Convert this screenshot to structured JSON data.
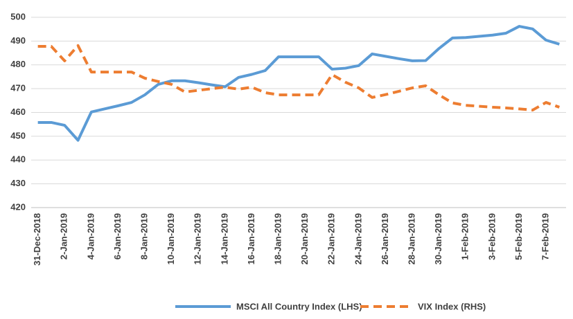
{
  "chart_data": {
    "type": "line",
    "categories": [
      "31-Dec-2018",
      null,
      "2-Jan-2019",
      null,
      "4-Jan-2019",
      null,
      "6-Jan-2019",
      null,
      "8-Jan-2019",
      null,
      "10-Jan-2019",
      null,
      "12-Jan-2019",
      null,
      "14-Jan-2019",
      null,
      "16-Jan-2019",
      null,
      "18-Jan-2019",
      null,
      "20-Jan-2019",
      null,
      "22-Jan-2019",
      null,
      "24-Jan-2019",
      null,
      "26-Jan-2019",
      null,
      "28-Jan-2019",
      null,
      "30-Jan-2019",
      null,
      "1-Feb-2019",
      null,
      "3-Feb-2019",
      null,
      "5-Feb-2019",
      null,
      "7-Feb-2019",
      null
    ],
    "series": [
      {
        "name": "MSCI All Country Index (LHS)",
        "color": "#5b9bd5",
        "dashed": false,
        "values": [
          455.8,
          455.8,
          454.6,
          448.3,
          460.2,
          461.5,
          462.8,
          464.2,
          467.4,
          471.8,
          473.3,
          473.3,
          472.5,
          471.6,
          470.8,
          474.7,
          476.0,
          477.6,
          483.4,
          483.4,
          483.4,
          483.4,
          478.2,
          478.6,
          479.7,
          484.6,
          483.6,
          482.6,
          481.7,
          481.8,
          486.9,
          491.3,
          491.5,
          492.0,
          492.5,
          493.3,
          496.2,
          495.1,
          490.4,
          488.7
        ]
      },
      {
        "name": "VIX Index (RHS)",
        "color": "#ed7d31",
        "dashed": true,
        "values": [
          487.8,
          487.8,
          481.7,
          488.1,
          477.0,
          477.0,
          477.0,
          477.0,
          474.4,
          473.0,
          471.8,
          468.6,
          469.3,
          470.0,
          470.6,
          469.8,
          470.6,
          468.3,
          467.4,
          467.4,
          467.4,
          467.4,
          475.9,
          472.7,
          470.3,
          466.3,
          467.5,
          468.9,
          470.3,
          471.2,
          467.4,
          464.0,
          463.0,
          462.6,
          462.2,
          461.9,
          461.5,
          461.0,
          464.2,
          462.2
        ]
      }
    ],
    "ylim": [
      420,
      500
    ],
    "yticks": [
      420,
      430,
      440,
      450,
      460,
      470,
      480,
      490,
      500
    ],
    "grid": true,
    "legend": "bottom"
  }
}
